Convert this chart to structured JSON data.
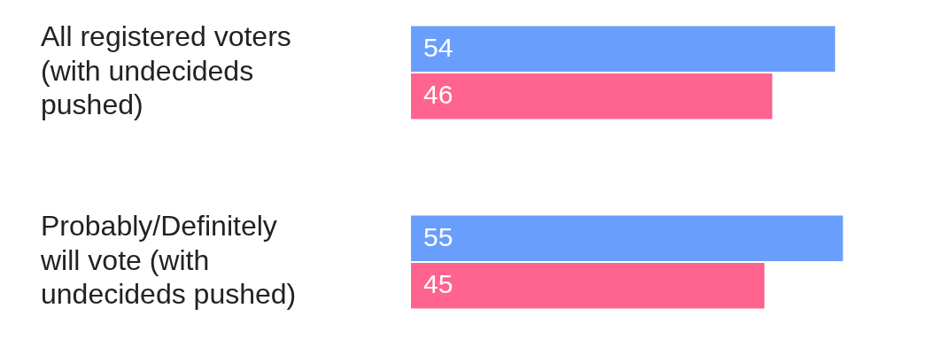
{
  "chart_data": {
    "type": "bar",
    "orientation": "horizontal",
    "categories": [
      "All registered voters (with undecideds pushed)",
      "Probably/Definitely will vote (with undecideds pushed)"
    ],
    "series": [
      {
        "color": "#6a9efc",
        "values": [
          54,
          55
        ]
      },
      {
        "color": "#ff6390",
        "values": [
          46,
          45
        ]
      }
    ],
    "data_labels": true,
    "grid": false,
    "legend": false,
    "tick_labels": "y"
  }
}
